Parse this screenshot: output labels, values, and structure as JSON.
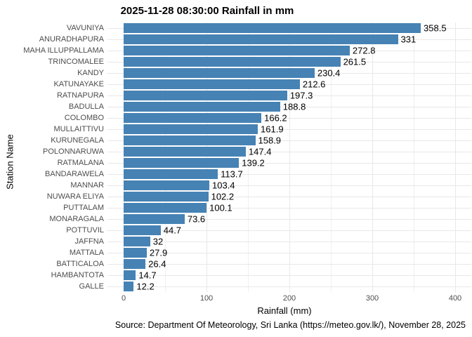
{
  "chart_data": {
    "type": "bar",
    "orientation": "horizontal",
    "title": "2025-11-28 08:30:00 Rainfall in mm",
    "xlabel": "Rainfall (mm)",
    "ylabel": "Station Name",
    "caption": "Source: Department Of Meteorology, Sri Lanka (https://meteo.gov.lk/), November 28, 2025",
    "xlim": [
      0,
      400
    ],
    "x_ticks": [
      0,
      100,
      200,
      300,
      400
    ],
    "x_minor_gridlines": [
      50,
      150,
      250,
      350
    ],
    "grid": true,
    "legend": "none",
    "bar_color": "#4682B4",
    "gridline_color": "#E8E8E8",
    "axis_text_color": "#4D4D4D",
    "text_color": "#000000",
    "categories": [
      "VAVUNIYA",
      "ANURADHAPURA",
      "MAHA ILLUPPALLAMA",
      "TRINCOMALEE",
      "KANDY",
      "KATUNAYAKE",
      "RATNAPURA",
      "BADULLA",
      "COLOMBO",
      "MULLAITTIVU",
      "KURUNEGALA",
      "POLONNARUWA",
      "RATMALANA",
      "BANDARAWELA",
      "MANNAR",
      "NUWARA ELIYA",
      "PUTTALAM",
      "MONARAGALA",
      "POTTUVIL",
      "JAFFNA",
      "MATTALA",
      "BATTICALOA",
      "HAMBANTOTA",
      "GALLE"
    ],
    "values": [
      358.5,
      331,
      272.8,
      261.5,
      230.4,
      212.6,
      197.3,
      188.8,
      166.2,
      161.9,
      158.9,
      147.4,
      139.2,
      113.7,
      103.4,
      102.2,
      100.1,
      73.6,
      44.7,
      32,
      27.9,
      26.4,
      14.7,
      12.2
    ],
    "value_labels": [
      "358.5",
      "331",
      "272.8",
      "261.5",
      "230.4",
      "212.6",
      "197.3",
      "188.8",
      "166.2",
      "161.9",
      "158.9",
      "147.4",
      "139.2",
      "113.7",
      "103.4",
      "102.2",
      "100.1",
      "73.6",
      "44.7",
      "32",
      "27.9",
      "26.4",
      "14.7",
      "12.2"
    ]
  }
}
